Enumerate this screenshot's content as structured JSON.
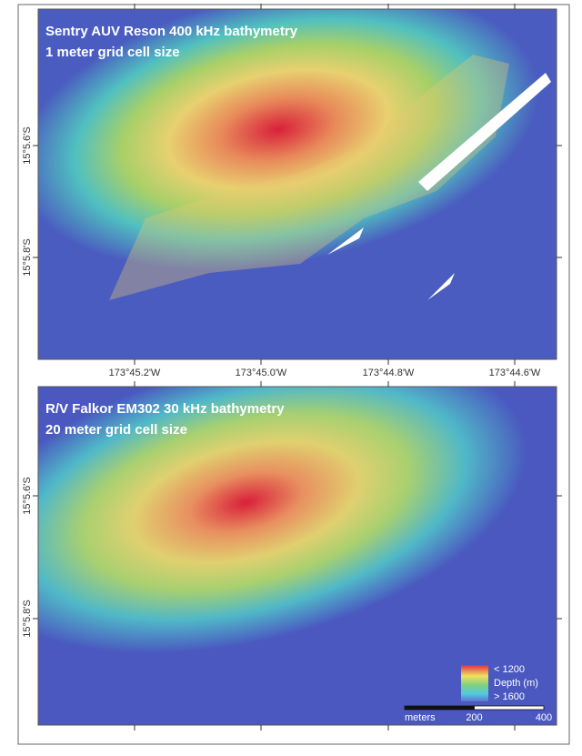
{
  "panels": [
    {
      "title_lines": [
        "Sentry AUV Reson 400 kHz bathymetry",
        "1 meter grid cell size"
      ],
      "lat_labels": [
        "15°5.6'S",
        "15°5.8'S"
      ],
      "lon_labels": [
        "173°45.2'W",
        "173°45.0'W",
        "173°44.8'W",
        "173°44.6'W"
      ]
    },
    {
      "title_lines": [
        "R/V Falkor EM302 30 kHz bathymetry",
        "20 meter grid cell size"
      ],
      "lat_labels": [
        "15°5.6'S",
        "15°5.8'S"
      ]
    }
  ],
  "legend": {
    "top": "< 1200",
    "label": "Depth (m)",
    "bottom": "> 1600"
  },
  "scale_bar": {
    "unit": "meters",
    "ticks": [
      200,
      400
    ]
  }
}
